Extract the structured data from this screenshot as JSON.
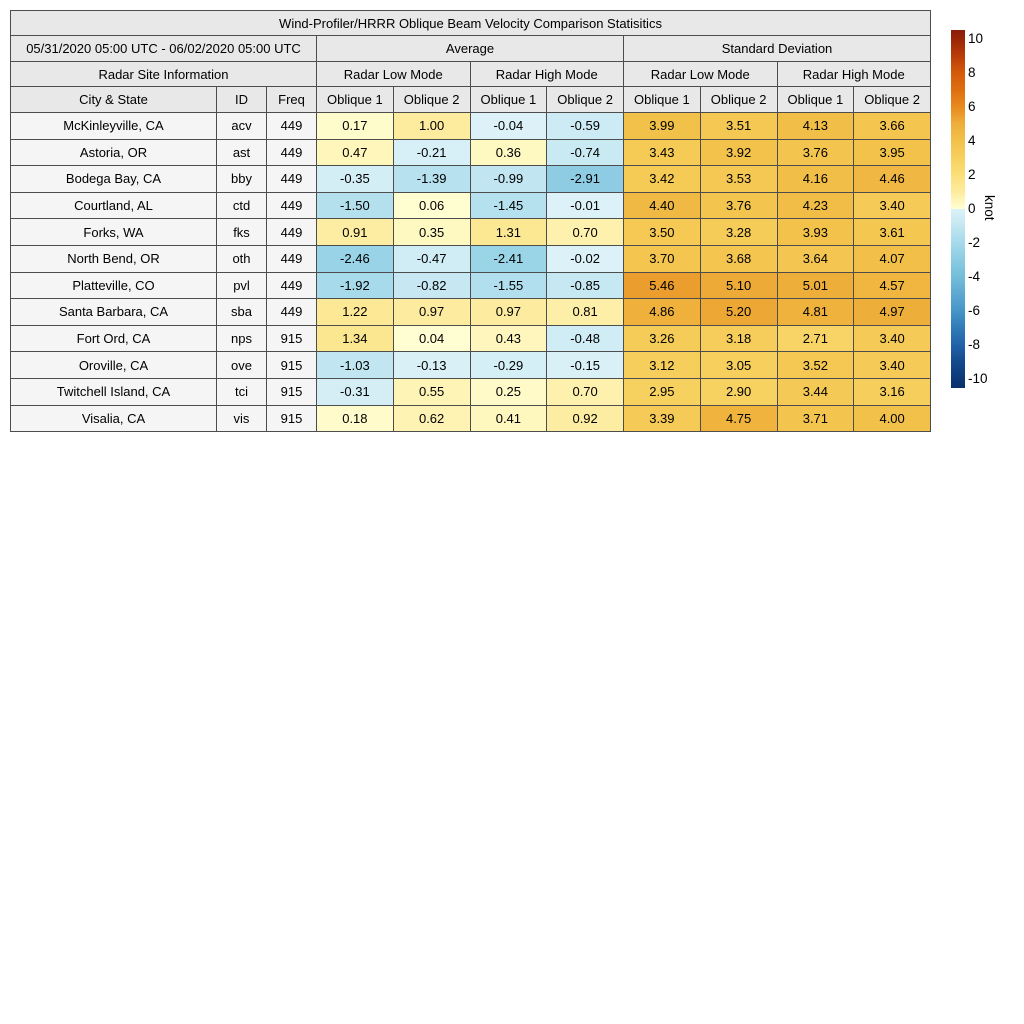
{
  "colors": {
    "header_bg": "#e8e8e8",
    "label_bg": "#f5f5f5",
    "border": "#4d4d4d",
    "text": "#000000",
    "page_bg": "#ffffff"
  },
  "chart_data": {
    "type": "table",
    "title": "Wind-Profiler/HRRR Oblique Beam Velocity Comparison Statisitics",
    "date_range": "05/31/2020 05:00 UTC - 06/02/2020 05:00 UTC",
    "group_headers": [
      "Average",
      "Standard Deviation"
    ],
    "site_info_label": "Radar Site Information",
    "mode_headers": [
      "Radar Low Mode",
      "Radar High Mode",
      "Radar Low Mode",
      "Radar High Mode"
    ],
    "col_headers": [
      "City & State",
      "ID",
      "Freq",
      "Oblique 1",
      "Oblique 2",
      "Oblique 1",
      "Oblique 2",
      "Oblique 1",
      "Oblique 2",
      "Oblique 1",
      "Oblique 2"
    ],
    "rows": [
      {
        "city": "McKinleyville, CA",
        "id": "acv",
        "freq": "449",
        "avg": [
          0.17,
          1.0,
          -0.04,
          -0.59
        ],
        "std": [
          3.99,
          3.51,
          4.13,
          3.66
        ]
      },
      {
        "city": "Astoria, OR",
        "id": "ast",
        "freq": "449",
        "avg": [
          0.47,
          -0.21,
          0.36,
          -0.74
        ],
        "std": [
          3.43,
          3.92,
          3.76,
          3.95
        ]
      },
      {
        "city": "Bodega Bay, CA",
        "id": "bby",
        "freq": "449",
        "avg": [
          -0.35,
          -1.39,
          -0.99,
          -2.91
        ],
        "std": [
          3.42,
          3.53,
          4.16,
          4.46
        ]
      },
      {
        "city": "Courtland, AL",
        "id": "ctd",
        "freq": "449",
        "avg": [
          -1.5,
          0.06,
          -1.45,
          -0.01
        ],
        "std": [
          4.4,
          3.76,
          4.23,
          3.4
        ]
      },
      {
        "city": "Forks, WA",
        "id": "fks",
        "freq": "449",
        "avg": [
          0.91,
          0.35,
          1.31,
          0.7
        ],
        "std": [
          3.5,
          3.28,
          3.93,
          3.61
        ]
      },
      {
        "city": "North Bend, OR",
        "id": "oth",
        "freq": "449",
        "avg": [
          -2.46,
          -0.47,
          -2.41,
          -0.02
        ],
        "std": [
          3.7,
          3.68,
          3.64,
          4.07
        ]
      },
      {
        "city": "Platteville, CO",
        "id": "pvl",
        "freq": "449",
        "avg": [
          -1.92,
          -0.82,
          -1.55,
          -0.85
        ],
        "std": [
          5.46,
          5.1,
          5.01,
          4.57
        ]
      },
      {
        "city": "Santa Barbara, CA",
        "id": "sba",
        "freq": "449",
        "avg": [
          1.22,
          0.97,
          0.97,
          0.81
        ],
        "std": [
          4.86,
          5.2,
          4.81,
          4.97
        ]
      },
      {
        "city": "Fort Ord, CA",
        "id": "nps",
        "freq": "915",
        "avg": [
          1.34,
          0.04,
          0.43,
          -0.48
        ],
        "std": [
          3.26,
          3.18,
          2.71,
          3.4
        ]
      },
      {
        "city": "Oroville, CA",
        "id": "ove",
        "freq": "915",
        "avg": [
          -1.03,
          -0.13,
          -0.29,
          -0.15
        ],
        "std": [
          3.12,
          3.05,
          3.52,
          3.4
        ]
      },
      {
        "city": "Twitchell Island, CA",
        "id": "tci",
        "freq": "915",
        "avg": [
          -0.31,
          0.55,
          0.25,
          0.7
        ],
        "std": [
          2.95,
          2.9,
          3.44,
          3.16
        ]
      },
      {
        "city": "Visalia, CA",
        "id": "vis",
        "freq": "915",
        "avg": [
          0.18,
          0.62,
          0.41,
          0.92
        ],
        "std": [
          3.39,
          4.75,
          3.71,
          4.0
        ]
      }
    ],
    "colorbar": {
      "label": "knot",
      "ticks": [
        10,
        8,
        6,
        4,
        2,
        0,
        -2,
        -4,
        -6,
        -8,
        -10
      ],
      "vmin": -10.5,
      "vmax": 10.5,
      "legend_position": "right",
      "colormap_negative": [
        [
          -10.5,
          "#08306b"
        ],
        [
          -9,
          "#14498c"
        ],
        [
          -8,
          "#2161a9"
        ],
        [
          -7,
          "#307ab8"
        ],
        [
          -6,
          "#4595c8"
        ],
        [
          -5,
          "#5da8d1"
        ],
        [
          -4,
          "#72bdd9"
        ],
        [
          -3,
          "#8bcbe2"
        ],
        [
          -2,
          "#a5daeb"
        ],
        [
          -1,
          "#c2e6f1"
        ],
        [
          0,
          "#ddf2f8"
        ]
      ],
      "colormap_positive": [
        [
          0,
          "#ffffd4"
        ],
        [
          0.5,
          "#fef5b9"
        ],
        [
          1,
          "#fdeb9e"
        ],
        [
          2,
          "#fbdf79"
        ],
        [
          3,
          "#f7d05e"
        ],
        [
          4,
          "#f2c149"
        ],
        [
          5,
          "#eeae3a"
        ],
        [
          6,
          "#e88a1d"
        ],
        [
          7,
          "#dd6f10"
        ],
        [
          8,
          "#d4590a"
        ],
        [
          9,
          "#b93c08"
        ],
        [
          10,
          "#992508"
        ],
        [
          10.5,
          "#8a1c09"
        ]
      ]
    }
  }
}
